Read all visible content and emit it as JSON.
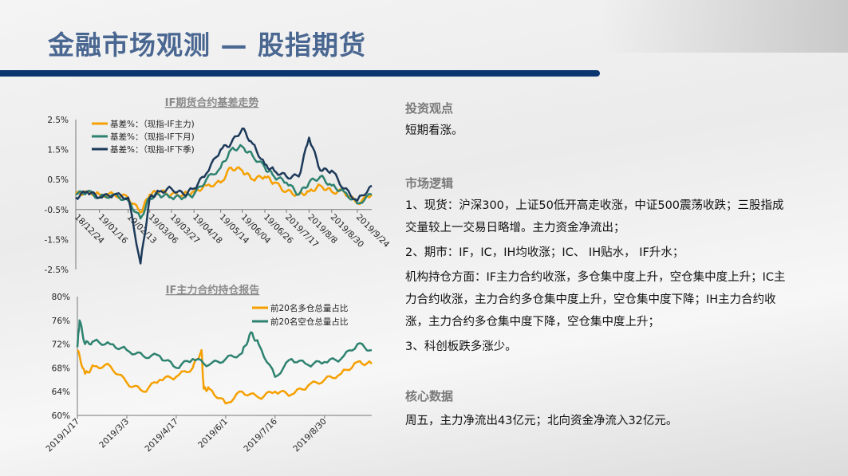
{
  "header": {
    "title": "金融市场观测 — 股指期货"
  },
  "right": {
    "view_heading": "投资观点",
    "view_text": "短期看涨。",
    "logic_heading": "市场逻辑",
    "logic_items": [
      "1、现货：沪深300，上证50低开高走收涨，中证500震荡收跌；三股指成交量较上一交易日略增。主力资金净流出；",
      "2、期市：IF，IC，IH均收涨；IC、 IH贴水， IF升水；",
      "机构持仓方面：IF主力合约收涨，多仓集中度上升，空仓集中度上升；IC主力合约收涨，主力合约多仓集中度上升，空仓集中度下降；IH主力合约收涨，主力合约多仓集中度下降，空仓集中度上升；",
      "3、科创板跌多涨少。"
    ],
    "data_heading": "核心数据",
    "data_text": "周五，主力净流出43亿元；北向资金净流入32亿元。"
  },
  "colors": {
    "title": "#4a6791",
    "bar": "#0b3571",
    "orange": "#f5a000",
    "green": "#2e8270",
    "navy": "#1d3a5a"
  },
  "chart_data": [
    {
      "type": "line",
      "title": "IF期货合约基差走势",
      "ylim": [
        -2.5,
        2.5
      ],
      "yticks": [
        "2.5%",
        "1.5%",
        "0.5%",
        "-0.5%",
        "-1.5%",
        "-2.5%"
      ],
      "ytick_values": [
        2.5,
        1.5,
        0.5,
        -0.5,
        -1.5,
        -2.5
      ],
      "xtick_labels": [
        "18/12/24",
        "19/01/16",
        "19/02/13",
        "19/03/06",
        "19/03/27",
        "19/04/18",
        "19/05/14",
        "19/06/04",
        "19/06/26",
        "2019/7/17",
        "2019/8/8",
        "2019/8/30",
        "2019/9/24"
      ],
      "xtick_dates": [
        "2018-12-24",
        "2019-01-16",
        "2019-02-13",
        "2019-03-06",
        "2019-03-27",
        "2019-04-18",
        "2019-05-14",
        "2019-06-04",
        "2019-06-26",
        "2019-07-17",
        "2019-08-08",
        "2019-08-30",
        "2019-09-24"
      ],
      "x": [
        "2018-12-24",
        "2019-01-04",
        "2019-01-16",
        "2019-01-30",
        "2019-02-13",
        "2019-02-25",
        "2019-03-06",
        "2019-03-15",
        "2019-03-27",
        "2019-04-08",
        "2019-04-18",
        "2019-04-30",
        "2019-05-14",
        "2019-05-24",
        "2019-06-04",
        "2019-06-14",
        "2019-06-26",
        "2019-07-05",
        "2019-07-17",
        "2019-07-29",
        "2019-08-08",
        "2019-08-19",
        "2019-08-30",
        "2019-09-11",
        "2019-09-24",
        "2019-10-08"
      ],
      "series": [
        {
          "name": "基差%：（现指-IF主力)",
          "color": "#f5a000",
          "values": [
            0.0,
            0.1,
            0.0,
            0.0,
            -0.1,
            -0.6,
            0.0,
            0.1,
            0.0,
            0.0,
            0.1,
            0.3,
            0.4,
            0.9,
            0.8,
            0.5,
            0.6,
            0.4,
            0.1,
            0.0,
            0.1,
            0.3,
            0.1,
            0.1,
            -0.3,
            0.0
          ]
        },
        {
          "name": "基差%：（现指-IF下月)",
          "color": "#2e8270",
          "values": [
            0.0,
            0.1,
            -0.1,
            0.0,
            -0.2,
            -0.8,
            -0.1,
            0.0,
            -0.1,
            -0.1,
            0.0,
            0.5,
            0.9,
            1.5,
            1.6,
            1.3,
            0.9,
            0.6,
            0.4,
            0.0,
            0.4,
            0.6,
            0.3,
            0.1,
            -0.3,
            0.0
          ]
        },
        {
          "name": "基差%：（现指-IF下季)",
          "color": "#1d3a5a",
          "values": [
            -0.1,
            0.1,
            -0.1,
            0.0,
            -0.1,
            -2.3,
            -0.1,
            0.1,
            0.2,
            0.0,
            0.2,
            0.7,
            1.5,
            1.7,
            2.2,
            1.7,
            1.0,
            0.8,
            0.6,
            0.6,
            1.9,
            0.8,
            0.8,
            0.2,
            -0.2,
            0.3
          ]
        }
      ],
      "legend": "top-left",
      "grid": false
    },
    {
      "type": "line",
      "title": "IF主力合约持仓报告",
      "ylim": [
        60,
        80
      ],
      "yticks": [
        "80%",
        "76%",
        "72%",
        "68%",
        "64%",
        "60%"
      ],
      "ytick_values": [
        80,
        76,
        72,
        68,
        64,
        60
      ],
      "xtick_labels": [
        "2019/1/17",
        "2019/3/3",
        "2019/4/17",
        "2019/6/1",
        "2019/7/16",
        "2019/8/30"
      ],
      "xtick_dates": [
        "2019-01-17",
        "2019-03-03",
        "2019-04-17",
        "2019-06-01",
        "2019-07-16",
        "2019-08-30"
      ],
      "series": [
        {
          "name": "前20名多仓总量占比",
          "color": "#f5a000",
          "x": [
            "2019-01-17",
            "2019-01-24",
            "2019-02-01",
            "2019-02-16",
            "2019-03-03",
            "2019-03-18",
            "2019-04-02",
            "2019-04-17",
            "2019-05-02",
            "2019-05-10",
            "2019-05-12",
            "2019-05-17",
            "2019-06-01",
            "2019-06-16",
            "2019-07-01",
            "2019-07-16",
            "2019-07-31",
            "2019-08-15",
            "2019-08-30",
            "2019-09-14",
            "2019-09-29",
            "2019-10-12"
          ],
          "values": [
            71,
            67,
            68.3,
            68.3,
            65.5,
            64,
            66,
            66.5,
            68,
            71,
            64.5,
            64.5,
            62,
            64,
            63,
            64,
            63.5,
            65,
            66,
            67,
            69,
            68.7
          ]
        },
        {
          "name": "前20名空仓总量占比",
          "color": "#2e8270",
          "x": [
            "2019-01-17",
            "2019-01-19",
            "2019-01-24",
            "2019-02-01",
            "2019-02-16",
            "2019-03-03",
            "2019-03-18",
            "2019-04-02",
            "2019-04-17",
            "2019-05-02",
            "2019-05-17",
            "2019-06-01",
            "2019-06-16",
            "2019-06-24",
            "2019-07-01",
            "2019-07-16",
            "2019-07-31",
            "2019-08-15",
            "2019-08-30",
            "2019-09-14",
            "2019-09-29",
            "2019-10-12"
          ],
          "values": [
            71.5,
            76,
            72,
            72.5,
            72,
            71,
            70,
            70,
            68,
            69.5,
            68.5,
            69.5,
            70.5,
            74,
            72,
            66.5,
            69.5,
            68.5,
            69,
            69.5,
            72,
            71
          ]
        }
      ],
      "legend": "top-right",
      "grid": false
    }
  ]
}
